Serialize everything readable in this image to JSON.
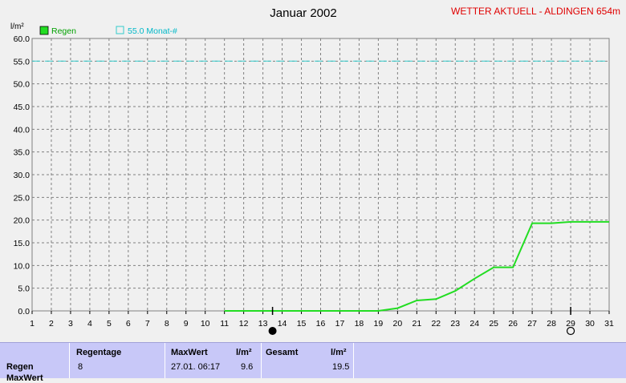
{
  "header": {
    "title": "Januar 2002",
    "brand": "WETTER AKTUELL - ALDINGEN 654m",
    "unit": "l/m²"
  },
  "legend": {
    "rain_label": "Regen",
    "avg_label": "55.0 Monat-#"
  },
  "colors": {
    "rain": "#22dd22",
    "average": "#33cccc",
    "grid": "#808080"
  },
  "chart_data": {
    "type": "line",
    "title": "Januar 2002",
    "ylabel": "l/m²",
    "xlabel": "",
    "ylim": [
      0,
      60
    ],
    "xlim": [
      1,
      31
    ],
    "yticks": [
      "0.0",
      "5.0",
      "10.0",
      "15.0",
      "20.0",
      "25.0",
      "30.0",
      "35.0",
      "40.0",
      "45.0",
      "50.0",
      "55.0",
      "60.0"
    ],
    "xticks": [
      "1",
      "2",
      "3",
      "4",
      "5",
      "6",
      "7",
      "8",
      "9",
      "10",
      "11",
      "12",
      "13",
      "14",
      "15",
      "16",
      "17",
      "18",
      "19",
      "20",
      "21",
      "22",
      "23",
      "24",
      "25",
      "26",
      "27",
      "28",
      "29",
      "30",
      "31"
    ],
    "grid": true,
    "legend_position": "top-left",
    "series": [
      {
        "name": "Regen",
        "x": [
          11,
          19,
          20,
          21,
          22,
          23,
          24,
          25,
          26,
          27,
          28,
          29,
          30,
          31
        ],
        "values": [
          0.0,
          0.0,
          0.6,
          2.3,
          2.6,
          4.4,
          7.1,
          9.6,
          9.6,
          19.3,
          19.3,
          19.6,
          19.6,
          19.6
        ]
      },
      {
        "name": "55.0 Monat-#",
        "x": [
          1,
          31
        ],
        "values": [
          55.0,
          55.0
        ]
      }
    ],
    "moon_phases": [
      {
        "day": 13.5,
        "phase": "new"
      },
      {
        "day": 29,
        "phase": "full"
      }
    ]
  },
  "stats": {
    "row_label": "Regen",
    "row_label2": "MaxWert",
    "regentage_header": "Regentage",
    "regentage_value": "8",
    "maxwert_header": "MaxWert",
    "maxwert_unit": "l/m²",
    "maxwert_time": "27.01.  06:17",
    "maxwert_value": "9.6",
    "gesamt_header": "Gesamt",
    "gesamt_unit": "l/m²",
    "gesamt_value": "19.5"
  }
}
